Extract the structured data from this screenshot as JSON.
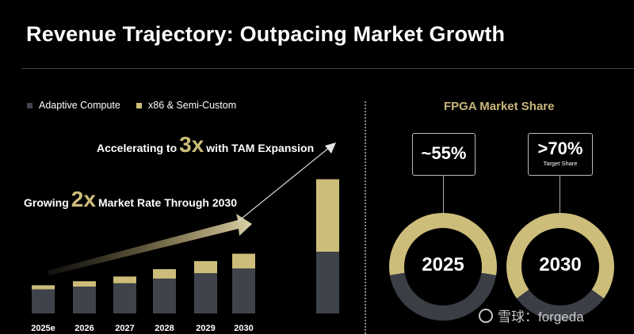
{
  "title": "Revenue Trajectory: Outpacing Market Growth",
  "colors": {
    "adaptive": "#3f434b",
    "x86": "#cdbd7a",
    "accent": "#cdbd7a",
    "ring_track": "#3b3e45"
  },
  "annotations": {
    "accel": {
      "before": "Accelerating to",
      "big": "3x",
      "after": "with TAM Expansion"
    },
    "grow": {
      "before": "Growing",
      "big": "2x",
      "after": "Market Rate Through 2030"
    }
  },
  "chart_data": {
    "type": "bar",
    "stacked": true,
    "categories": [
      "2025e",
      "2026",
      "2027",
      "2028",
      "2029",
      "2030",
      ""
    ],
    "series": [
      {
        "name": "Adaptive Compute",
        "values": [
          36,
          40,
          45,
          52,
          60,
          67,
          92
        ]
      },
      {
        "name": "x86 & Semi-Custom",
        "values": [
          6,
          8,
          10,
          14,
          18,
          22,
          108
        ]
      }
    ],
    "ylim": [
      0,
      210
    ],
    "title": "",
    "xlabel": "",
    "ylabel": ""
  },
  "share": {
    "title": "FPGA Market Share",
    "items": [
      {
        "value": "~55%",
        "sub": "",
        "year": "2025",
        "fraction": 0.55
      },
      {
        "value": ">70%",
        "sub": "Target Share",
        "year": "2030",
        "fraction": 0.7
      }
    ]
  },
  "watermark": {
    "text": "雪球：forgeda"
  }
}
